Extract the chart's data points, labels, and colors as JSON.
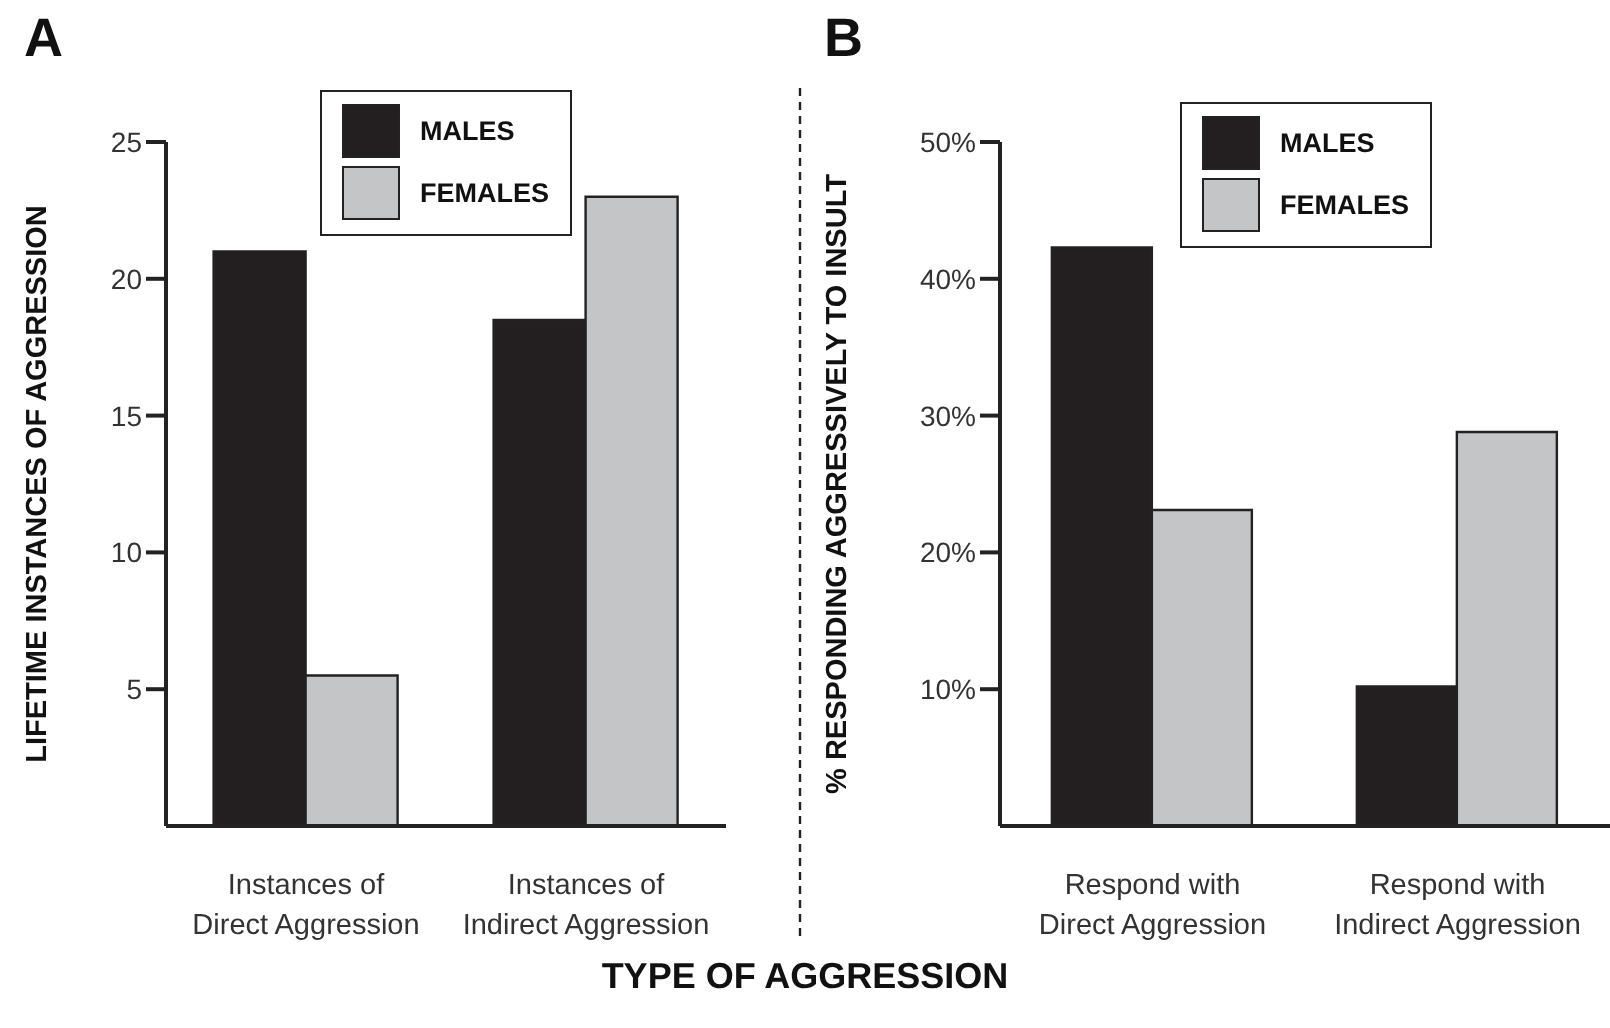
{
  "chart_data": [
    {
      "type": "bar",
      "title": "A",
      "xlabel": "TYPE OF AGGRESSION",
      "ylabel": "LIFETIME INSTANCES OF AGGRESSION",
      "categories": [
        "Instances of Direct Aggression",
        "Instances of Indirect Aggression"
      ],
      "series": [
        {
          "name": "MALES",
          "color": "#231f20",
          "values": [
            21,
            18.5
          ]
        },
        {
          "name": "FEMALES",
          "color": "#c4c5c7",
          "values": [
            5.5,
            23
          ]
        }
      ],
      "ylim": [
        0,
        25
      ],
      "yticks": [
        5,
        10,
        15,
        20,
        25
      ],
      "grid": false,
      "legend": "top"
    },
    {
      "type": "bar",
      "title": "B",
      "ylabel": "% RESPONDING AGGRESSIVELY TO INSULT",
      "categories": [
        "Respond with Direct Aggression",
        "Respond with Indirect Aggression"
      ],
      "series": [
        {
          "name": "MALES",
          "color": "#231f20",
          "values": [
            42.3,
            10.2
          ]
        },
        {
          "name": "FEMALES",
          "color": "#c4c5c7",
          "values": [
            23.1,
            28.8
          ]
        }
      ],
      "ylim": [
        0,
        50
      ],
      "yticks": [
        {
          "value": 10,
          "label": "10%"
        },
        {
          "value": 20,
          "label": "20%"
        },
        {
          "value": 30,
          "label": "30%"
        },
        {
          "value": 40,
          "label": "40%"
        },
        {
          "value": 50,
          "label": "50%"
        }
      ],
      "grid": false,
      "legend": "top right"
    }
  ]
}
